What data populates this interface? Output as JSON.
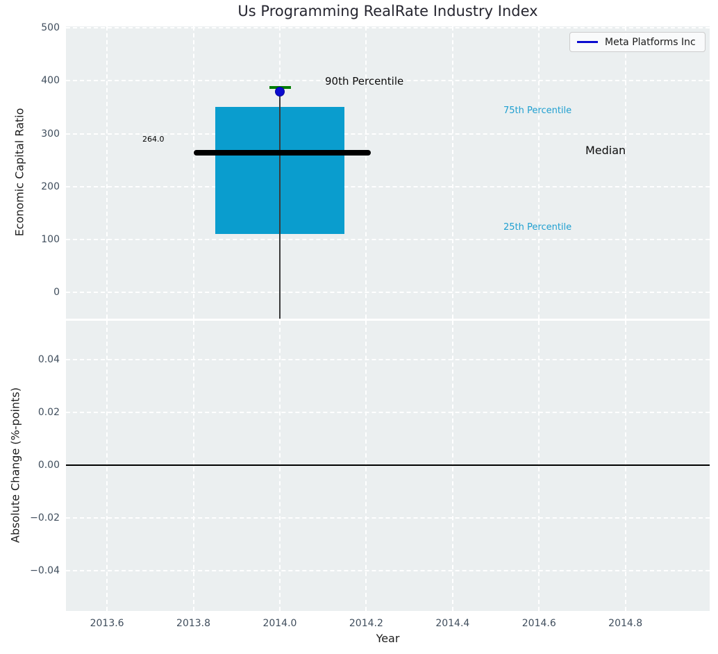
{
  "title": "Us Programming RealRate Industry Index",
  "legend": {
    "label": "Meta Platforms Inc",
    "line_color": "#0b0bcf"
  },
  "annotations": {
    "p90": "90th Percentile",
    "p75": "75th Percentile",
    "median": "Median",
    "p25": "25th Percentile",
    "median_value": "264.0"
  },
  "top_axes": {
    "ylabel": "Economic Capital Ratio",
    "yticks": [
      {
        "v": 500,
        "label": "500"
      },
      {
        "v": 400,
        "label": "400"
      },
      {
        "v": 300,
        "label": "300"
      },
      {
        "v": 200,
        "label": "200"
      },
      {
        "v": 100,
        "label": "100"
      },
      {
        "v": 0,
        "label": "0"
      }
    ]
  },
  "bottom_axes": {
    "ylabel": "Absolute Change (%-points)",
    "xlabel": "Year",
    "yticks": [
      {
        "v": 0.04,
        "label": "0.04"
      },
      {
        "v": 0.02,
        "label": "0.02"
      },
      {
        "v": 0.0,
        "label": "0.00"
      },
      {
        "v": -0.02,
        "label": "−0.02"
      },
      {
        "v": -0.04,
        "label": "−0.04"
      }
    ],
    "xticks": [
      {
        "v": 2013.6,
        "label": "2013.6"
      },
      {
        "v": 2013.8,
        "label": "2013.8"
      },
      {
        "v": 2014.0,
        "label": "2014.0"
      },
      {
        "v": 2014.2,
        "label": "2014.2"
      },
      {
        "v": 2014.4,
        "label": "2014.4"
      },
      {
        "v": 2014.6,
        "label": "2014.6"
      },
      {
        "v": 2014.8,
        "label": "2014.8"
      }
    ]
  },
  "chart_data": [
    {
      "type": "boxplot",
      "title": "Us Programming RealRate Industry Index",
      "xlabel": "Year",
      "ylabel": "Economic Capital Ratio",
      "xlim": [
        2013.5,
        2015.0
      ],
      "ylim": [
        -50,
        503
      ],
      "xticks": [
        2013.6,
        2013.8,
        2014.0,
        2014.2,
        2014.4,
        2014.6,
        2014.8
      ],
      "yticks": [
        0,
        100,
        200,
        300,
        400,
        500
      ],
      "grid": true,
      "legend_position": "upper right",
      "box": {
        "x": 2014.0,
        "box_span": [
          2013.85,
          2014.15
        ],
        "q1": 110,
        "median": 264.0,
        "q3": 350,
        "p90": 387,
        "median_line_span": [
          2013.8,
          2014.21
        ],
        "cap_span": [
          2013.976,
          2014.026
        ],
        "whisker_low_clipped_below_axis": true,
        "colors": {
          "box": "#0a9dce",
          "median": "#000000",
          "cap": "#007d00",
          "whisker": "#3a3a3a"
        }
      },
      "company_point": {
        "name": "Meta Platforms Inc",
        "x": 2014.0,
        "y": 380,
        "color": "#0b0bcf"
      },
      "annotation_texts": [
        "90th Percentile",
        "75th Percentile",
        "Median",
        "25th Percentile",
        "264.0"
      ]
    },
    {
      "type": "line",
      "xlabel": "Year",
      "ylabel": "Absolute Change (%-points)",
      "xlim": [
        2013.5,
        2015.0
      ],
      "ylim": [
        -0.055,
        0.055
      ],
      "yticks": [
        0.04,
        0.02,
        0.0,
        -0.02,
        -0.04
      ],
      "series": [],
      "reference_line_y": 0.0
    }
  ]
}
